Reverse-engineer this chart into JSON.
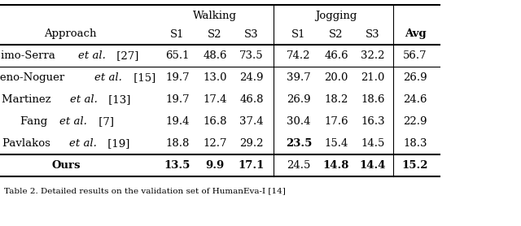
{
  "caption": "Table 2. Detailed results on the validation set of HumanEva-I [14]",
  "rows": [
    {
      "name_parts": [
        [
          "Simo-Serra ",
          false
        ],
        [
          "et al.",
          true
        ],
        [
          " [27]",
          false
        ]
      ],
      "values": [
        "65.1",
        "48.6",
        "73.5",
        "74.2",
        "46.6",
        "32.2",
        "56.7"
      ],
      "bold_vals": []
    },
    {
      "name_parts": [
        [
          "Moreno-Noguer ",
          false
        ],
        [
          "et al.",
          true
        ],
        [
          " [15]",
          false
        ]
      ],
      "values": [
        "19.7",
        "13.0",
        "24.9",
        "39.7",
        "20.0",
        "21.0",
        "26.9"
      ],
      "bold_vals": []
    },
    {
      "name_parts": [
        [
          "Martinez ",
          false
        ],
        [
          "et al.",
          true
        ],
        [
          " [13]",
          false
        ]
      ],
      "values": [
        "19.7",
        "17.4",
        "46.8",
        "26.9",
        "18.2",
        "18.6",
        "24.6"
      ],
      "bold_vals": []
    },
    {
      "name_parts": [
        [
          "Fang ",
          false
        ],
        [
          "et al.",
          true
        ],
        [
          " [7]",
          false
        ]
      ],
      "values": [
        "19.4",
        "16.8",
        "37.4",
        "30.4",
        "17.6",
        "16.3",
        "22.9"
      ],
      "bold_vals": []
    },
    {
      "name_parts": [
        [
          "Pavlakos ",
          false
        ],
        [
          "et al.",
          true
        ],
        [
          " [19]",
          false
        ]
      ],
      "values": [
        "18.8",
        "12.7",
        "29.2",
        "23.5",
        "15.4",
        "14.5",
        "18.3"
      ],
      "bold_vals": [
        3
      ]
    },
    {
      "name_parts": [
        [
          "Ours",
          false
        ]
      ],
      "values": [
        "13.5",
        "9.9",
        "17.1",
        "24.5",
        "14.8",
        "14.4",
        "15.2"
      ],
      "bold_vals": [
        0,
        1,
        2,
        4,
        5,
        6
      ],
      "name_bold": true
    }
  ],
  "font_size": 9.5,
  "bg_color": "#ffffff",
  "line_color": "#000000"
}
